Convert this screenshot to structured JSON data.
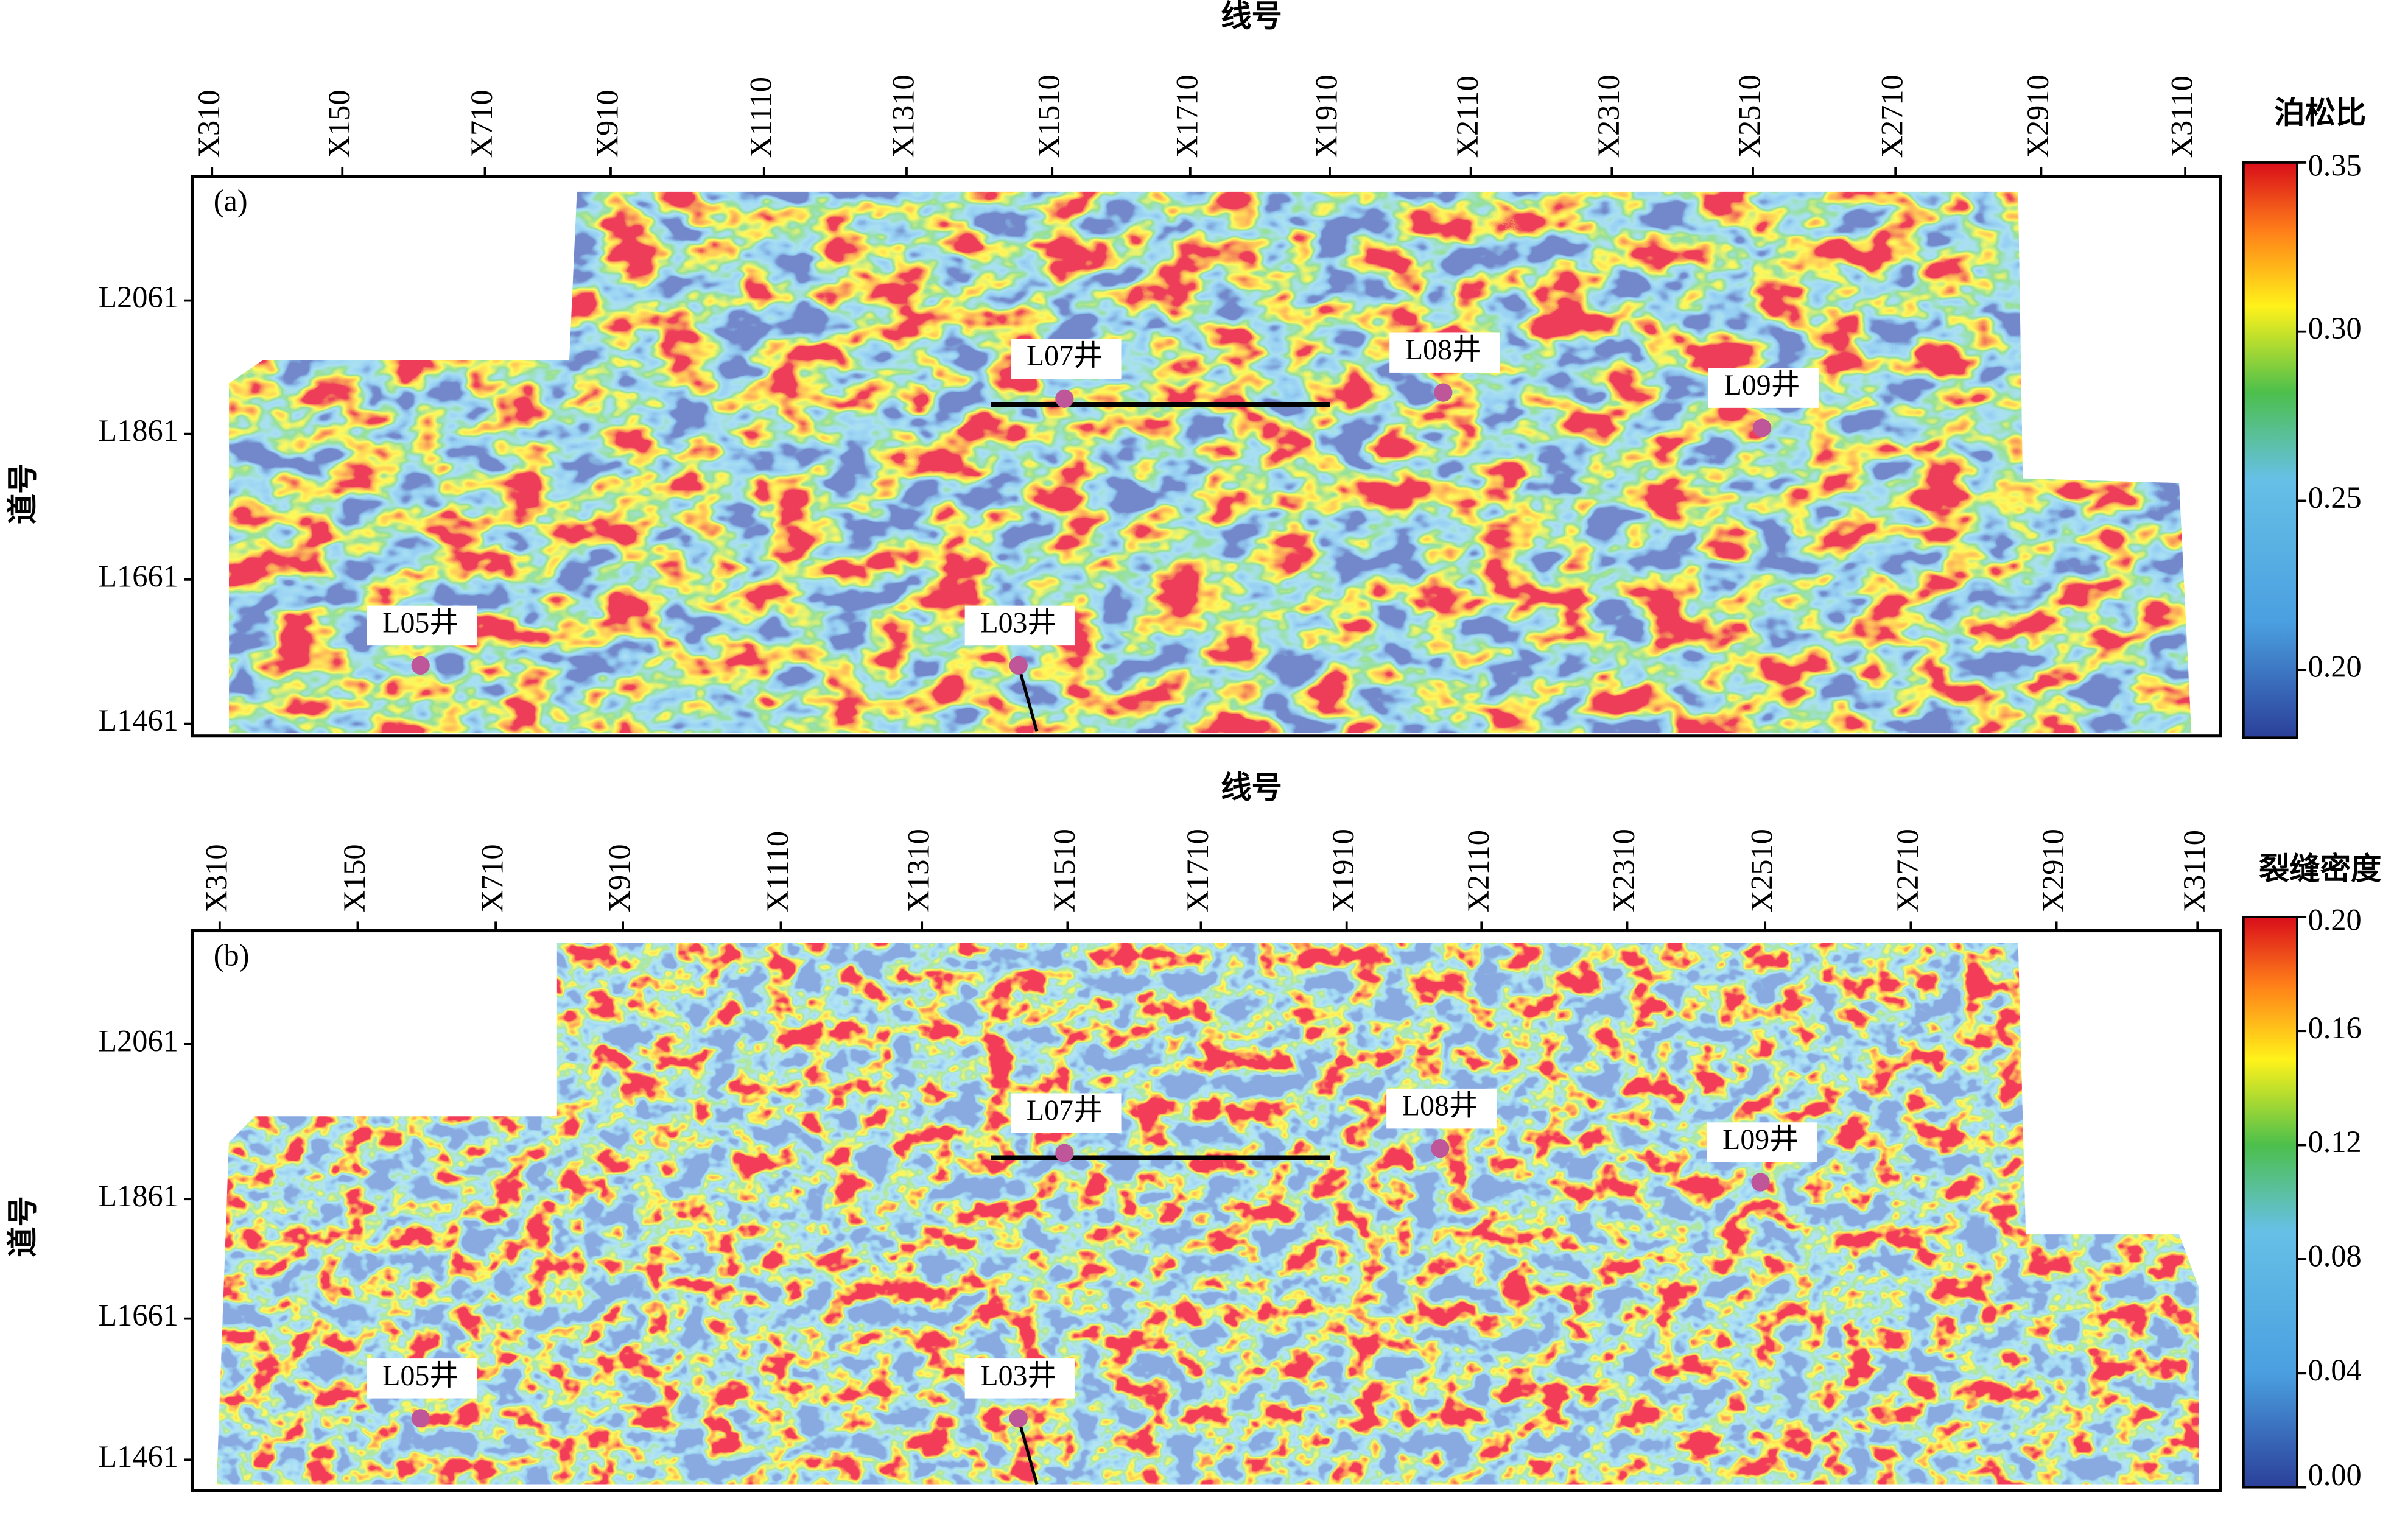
{
  "panels": [
    {
      "label": "(a)",
      "x_axis_title": "线号",
      "x_ticks": [
        "X310",
        "X150",
        "X710",
        "X910",
        "X1110",
        "X1310",
        "X1510",
        "X1710",
        "X1910",
        "X2110",
        "X2310",
        "X2510",
        "X2710",
        "X2910",
        "X3110"
      ],
      "y_axis_title": "道号",
      "y_ticks": [
        "L2061",
        "L1861",
        "L1661",
        "L1461"
      ],
      "colorbar": {
        "title": "泊松比",
        "lim": [
          0.18,
          0.35
        ],
        "ticks": [
          0.35,
          {
            "value": 0.3,
            "label": "0.30"
          },
          0.25,
          {
            "value": 0.2,
            "label": "0.20"
          }
        ]
      },
      "wells": [
        "L07井",
        "L08井",
        "L09井",
        "L05井",
        "L03井"
      ]
    },
    {
      "label": "(b)",
      "x_axis_title": "线号",
      "x_ticks": [
        "X310",
        "X150",
        "X710",
        "X910",
        "X1110",
        "X1310",
        "X1510",
        "X1710",
        "X1910",
        "X2110",
        "X2310",
        "X2510",
        "X2710",
        "X2910",
        "X3110"
      ],
      "y_axis_title": "道号",
      "y_ticks": [
        "L2061",
        "L1861",
        "L1661",
        "L1461"
      ],
      "colorbar": {
        "title": "裂缝密度",
        "lim": [
          0,
          0.2
        ],
        "ticks": [
          {
            "value": 0.2,
            "label": "0.20"
          },
          0.16,
          0.12,
          0.08,
          0.04,
          {
            "value": 0,
            "label": "0.00"
          }
        ]
      },
      "wells": [
        "L07井",
        "L08井",
        "L09井",
        "L05井",
        "L03井"
      ]
    }
  ]
}
